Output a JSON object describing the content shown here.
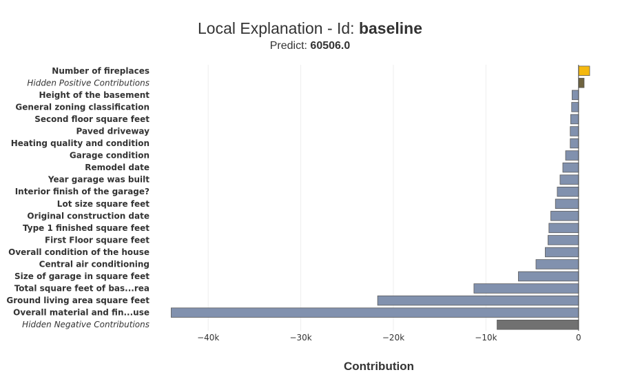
{
  "chart_data": {
    "type": "bar",
    "orientation": "horizontal",
    "title_prefix": "Local Explanation - Id: ",
    "title_id": "baseline",
    "subtitle_prefix": "Predict: ",
    "subtitle_value": "60506.0",
    "xlabel": "Contribution",
    "ylabel": "",
    "xlim": [
      -45000,
      1500
    ],
    "x_ticks": [
      -40000,
      -30000,
      -20000,
      -10000,
      0
    ],
    "x_tick_labels": [
      "−40k",
      "−30k",
      "−20k",
      "−10k",
      "0"
    ],
    "grid": "vertical",
    "colors": {
      "positive": "#f5b90f",
      "hidden_positive": "#6f6440",
      "negative": "#8191ae",
      "hidden_negative": "#717171",
      "bar_outline": "#5a5a5a"
    },
    "categories": [
      {
        "label": "Number of fireplaces",
        "value": 1200,
        "kind": "positive"
      },
      {
        "label": "Hidden Positive Contributions",
        "value": 600,
        "kind": "hidden_positive"
      },
      {
        "label": "Height of the basement",
        "value": -700,
        "kind": "negative"
      },
      {
        "label": "General zoning classification",
        "value": -750,
        "kind": "negative"
      },
      {
        "label": "Second floor square feet",
        "value": -850,
        "kind": "negative"
      },
      {
        "label": "Paved driveway",
        "value": -900,
        "kind": "negative"
      },
      {
        "label": "Heating quality and condition",
        "value": -900,
        "kind": "negative"
      },
      {
        "label": "Garage condition",
        "value": -1400,
        "kind": "negative"
      },
      {
        "label": "Remodel date",
        "value": -1700,
        "kind": "negative"
      },
      {
        "label": "Year garage was built",
        "value": -2000,
        "kind": "negative"
      },
      {
        "label": "Interior finish of the garage?",
        "value": -2300,
        "kind": "negative"
      },
      {
        "label": "Lot size square feet",
        "value": -2500,
        "kind": "negative"
      },
      {
        "label": "Original construction date",
        "value": -3000,
        "kind": "negative"
      },
      {
        "label": "Type 1 finished square feet",
        "value": -3200,
        "kind": "negative"
      },
      {
        "label": "First Floor square feet",
        "value": -3300,
        "kind": "negative"
      },
      {
        "label": "Overall condition of the house",
        "value": -3600,
        "kind": "negative"
      },
      {
        "label": "Central air conditioning",
        "value": -4600,
        "kind": "negative"
      },
      {
        "label": "Size of garage in square feet",
        "value": -6500,
        "kind": "negative"
      },
      {
        "label": "Total square feet of bas...rea",
        "value": -11300,
        "kind": "negative"
      },
      {
        "label": "Ground living area square feet",
        "value": -21700,
        "kind": "negative"
      },
      {
        "label": "Overall material and fin...use",
        "value": -44000,
        "kind": "negative"
      },
      {
        "label": "Hidden Negative Contributions",
        "value": -8800,
        "kind": "hidden_negative"
      }
    ]
  }
}
